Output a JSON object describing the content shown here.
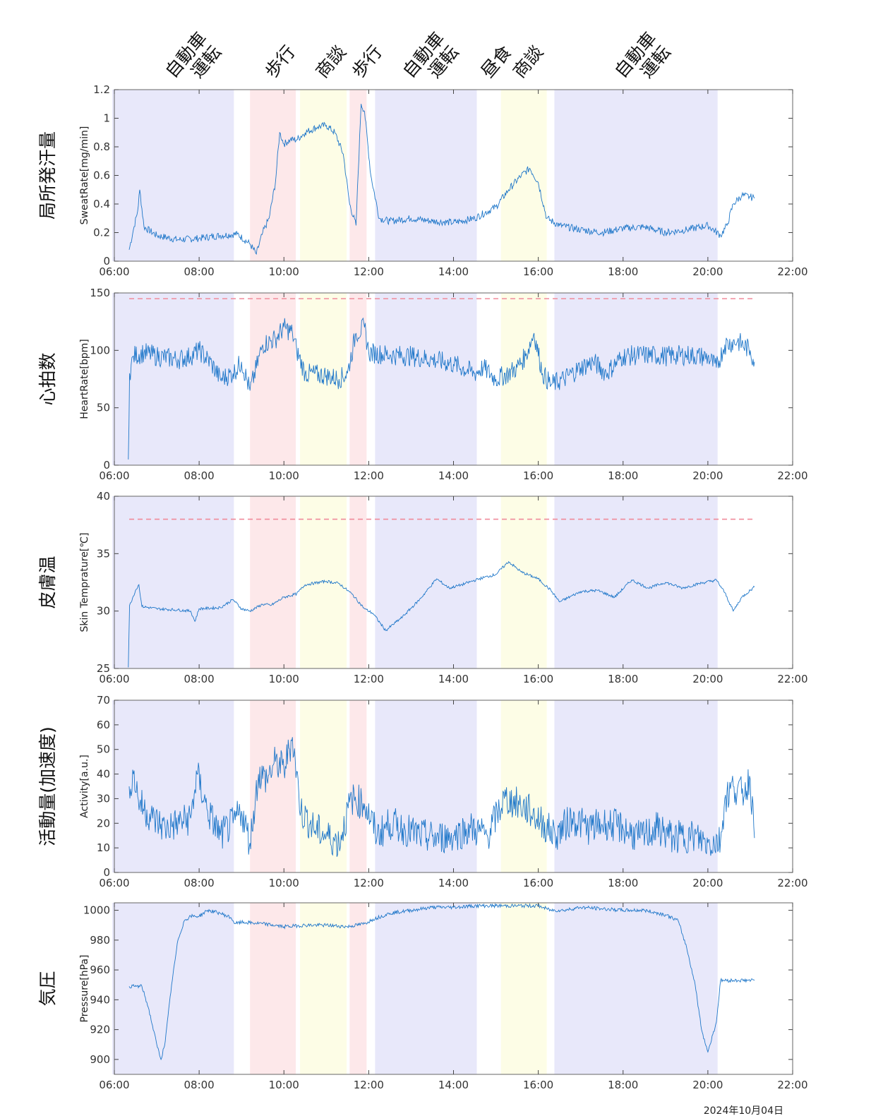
{
  "date_label": "2024年10月04日",
  "activity_labels": [
    {
      "lines": [
        "自動車",
        "運転"
      ],
      "t": 7.4
    },
    {
      "lines": [
        "歩行"
      ],
      "t": 9.75
    },
    {
      "lines": [
        "商談"
      ],
      "t": 10.95
    },
    {
      "lines": [
        "歩行"
      ],
      "t": 11.8
    },
    {
      "lines": [
        "自動車",
        "運転"
      ],
      "t": 13.0
    },
    {
      "lines": [
        "昼食"
      ],
      "t": 14.85
    },
    {
      "lines": [
        "商談"
      ],
      "t": 15.6
    },
    {
      "lines": [
        "自動車",
        "運転"
      ],
      "t": 18.0
    }
  ],
  "bands": [
    {
      "activity": "自動車運転",
      "start": 5.95,
      "end": 8.82,
      "color": "#e8e8fa"
    },
    {
      "activity": "歩行",
      "start": 9.2,
      "end": 10.28,
      "color": "#fde8ea"
    },
    {
      "activity": "商談",
      "start": 10.38,
      "end": 11.48,
      "color": "#fdfde6"
    },
    {
      "activity": "歩行",
      "start": 11.55,
      "end": 11.95,
      "color": "#fde8ea"
    },
    {
      "activity": "自動車運転",
      "start": 12.15,
      "end": 14.55,
      "color": "#e8e8fa"
    },
    {
      "activity": "商談",
      "start": 15.12,
      "end": 16.2,
      "color": "#fdfde6"
    },
    {
      "activity": "自動車運転",
      "start": 16.38,
      "end": 20.23,
      "color": "#e8e8fa"
    }
  ],
  "colors": {
    "line": "#1f77c9",
    "threshold": "#f08a9a",
    "frame": "#666666"
  },
  "chart_data": [
    {
      "type": "line",
      "jp_title": "局所発汗量",
      "ylabel": "SweatRate[mg/min]",
      "xlim": [
        6,
        22
      ],
      "ylim": [
        0,
        1.2
      ],
      "yticks": [
        "0",
        "0.2",
        "0.4",
        "0.6",
        "0.8",
        "1",
        "1.2"
      ],
      "xticks": [
        "06:00",
        "08:00",
        "10:00",
        "12:00",
        "14:00",
        "16:00",
        "18:00",
        "20:00",
        "22:00"
      ],
      "x": [
        6.35,
        6.45,
        6.55,
        6.6,
        6.7,
        7.0,
        7.5,
        8.0,
        8.5,
        8.9,
        9.2,
        9.35,
        9.5,
        9.65,
        9.8,
        9.9,
        10.0,
        10.15,
        10.3,
        10.5,
        10.8,
        11.0,
        11.2,
        11.4,
        11.55,
        11.7,
        11.82,
        11.9,
        12.05,
        12.25,
        12.5,
        13.0,
        13.5,
        14.0,
        14.5,
        15.0,
        15.3,
        15.6,
        15.8,
        16.0,
        16.2,
        16.5,
        17.0,
        17.5,
        18.0,
        18.5,
        19.0,
        19.5,
        20.0,
        20.3,
        20.45,
        20.6,
        20.8,
        21.0,
        21.1
      ],
      "y": [
        0.08,
        0.22,
        0.35,
        0.5,
        0.24,
        0.18,
        0.15,
        0.16,
        0.18,
        0.19,
        0.12,
        0.05,
        0.2,
        0.3,
        0.55,
        0.9,
        0.82,
        0.85,
        0.85,
        0.9,
        0.94,
        0.95,
        0.9,
        0.75,
        0.4,
        0.25,
        1.1,
        1.05,
        0.6,
        0.3,
        0.28,
        0.3,
        0.28,
        0.27,
        0.3,
        0.38,
        0.5,
        0.6,
        0.65,
        0.55,
        0.3,
        0.25,
        0.22,
        0.2,
        0.23,
        0.24,
        0.2,
        0.22,
        0.25,
        0.18,
        0.25,
        0.4,
        0.46,
        0.45,
        0.44
      ],
      "threshold": null
    },
    {
      "type": "line",
      "jp_title": "心拍数",
      "ylabel": "HeartRate[bpm]",
      "xlim": [
        6,
        22
      ],
      "ylim": [
        0,
        150
      ],
      "yticks": [
        "0",
        "50",
        "100",
        "150"
      ],
      "xticks": [
        "06:00",
        "08:00",
        "10:00",
        "12:00",
        "14:00",
        "16:00",
        "18:00",
        "20:00",
        "22:00"
      ],
      "x": [
        6.33,
        6.36,
        6.45,
        6.7,
        7.0,
        7.5,
        7.8,
        8.0,
        8.3,
        8.5,
        8.8,
        9.0,
        9.2,
        9.5,
        9.8,
        10.0,
        10.2,
        10.3,
        10.5,
        11.0,
        11.3,
        11.5,
        11.7,
        11.9,
        12.0,
        12.5,
        13.0,
        13.5,
        14.0,
        14.5,
        14.7,
        15.0,
        15.3,
        15.5,
        15.7,
        15.9,
        16.1,
        16.3,
        16.6,
        17.0,
        17.3,
        17.6,
        18.0,
        18.5,
        19.0,
        19.5,
        20.0,
        20.2,
        20.4,
        20.7,
        21.0,
        21.1
      ],
      "y": [
        5,
        80,
        95,
        98,
        95,
        92,
        95,
        100,
        88,
        75,
        80,
        90,
        65,
        105,
        110,
        120,
        115,
        100,
        80,
        78,
        75,
        80,
        115,
        120,
        98,
        96,
        95,
        92,
        88,
        80,
        85,
        75,
        80,
        85,
        95,
        115,
        80,
        70,
        75,
        85,
        90,
        80,
        95,
        96,
        95,
        96,
        94,
        85,
        105,
        108,
        100,
        90
      ],
      "threshold": 145
    },
    {
      "type": "line",
      "jp_title": "皮膚温",
      "ylabel": "Skin Temprature[℃]",
      "xlim": [
        6,
        22
      ],
      "ylim": [
        25,
        40
      ],
      "yticks": [
        "25",
        "30",
        "35",
        "40"
      ],
      "xticks": [
        "06:00",
        "08:00",
        "10:00",
        "12:00",
        "14:00",
        "16:00",
        "18:00",
        "20:00",
        "22:00"
      ],
      "x": [
        6.33,
        6.36,
        6.5,
        6.58,
        6.65,
        7.0,
        7.5,
        7.8,
        7.9,
        8.0,
        8.5,
        8.8,
        9.0,
        9.2,
        9.5,
        9.7,
        10.0,
        10.3,
        10.5,
        11.0,
        11.3,
        11.6,
        11.9,
        12.1,
        12.4,
        12.8,
        13.2,
        13.6,
        13.9,
        14.2,
        14.6,
        15.0,
        15.3,
        15.6,
        16.0,
        16.3,
        16.5,
        17.0,
        17.4,
        17.8,
        18.2,
        18.6,
        19.0,
        19.4,
        19.8,
        20.2,
        20.4,
        20.6,
        20.8,
        21.1
      ],
      "y": [
        25.1,
        30.5,
        31.8,
        32.3,
        30.4,
        30.2,
        30.1,
        30.0,
        29.1,
        30.2,
        30.3,
        31.0,
        30.2,
        30.0,
        30.6,
        30.5,
        31.2,
        31.5,
        32.3,
        32.6,
        32.4,
        31.5,
        30.2,
        29.8,
        28.3,
        29.5,
        31.0,
        32.8,
        32.0,
        32.3,
        32.8,
        33.2,
        34.3,
        33.4,
        32.8,
        31.8,
        30.8,
        31.7,
        31.8,
        31.2,
        32.7,
        32.0,
        32.5,
        32.0,
        32.4,
        32.7,
        31.6,
        30.0,
        31.2,
        32.1
      ],
      "threshold": 38
    },
    {
      "type": "line",
      "jp_title": "活動量(加速度)",
      "ylabel": "Activity[a.u.]",
      "xlim": [
        6,
        22
      ],
      "ylim": [
        0,
        70
      ],
      "yticks": [
        "0",
        "10",
        "20",
        "30",
        "40",
        "50",
        "60",
        "70"
      ],
      "xticks": [
        "06:00",
        "08:00",
        "10:00",
        "12:00",
        "14:00",
        "16:00",
        "18:00",
        "20:00",
        "22:00"
      ],
      "x": [
        6.35,
        6.45,
        6.6,
        6.9,
        7.2,
        7.5,
        7.8,
        7.95,
        8.2,
        8.5,
        8.8,
        9.0,
        9.2,
        9.4,
        9.6,
        9.8,
        10.0,
        10.2,
        10.4,
        10.7,
        11.0,
        11.3,
        11.6,
        11.9,
        12.2,
        12.5,
        12.8,
        13.2,
        13.6,
        14.0,
        14.4,
        14.8,
        15.2,
        15.5,
        15.8,
        16.1,
        16.4,
        16.8,
        17.2,
        17.6,
        18.0,
        18.4,
        18.8,
        19.2,
        19.6,
        20.0,
        20.3,
        20.4,
        20.6,
        20.8,
        21.0,
        21.1
      ],
      "y": [
        35,
        40,
        28,
        22,
        18,
        20,
        22,
        40,
        25,
        15,
        20,
        25,
        12,
        40,
        38,
        45,
        42,
        55,
        25,
        18,
        15,
        12,
        30,
        28,
        15,
        20,
        18,
        15,
        14,
        15,
        18,
        15,
        30,
        28,
        25,
        20,
        15,
        22,
        18,
        20,
        18,
        14,
        18,
        14,
        15,
        12,
        13,
        30,
        35,
        32,
        38,
        14
      ],
      "threshold": null
    },
    {
      "type": "line",
      "jp_title": "気圧",
      "ylabel": "Pressure[hPa]",
      "xlim": [
        6,
        22
      ],
      "ylim": [
        890,
        1005
      ],
      "yticks": [
        "900",
        "920",
        "940",
        "960",
        "980",
        "1000"
      ],
      "xticks": [
        "06:00",
        "08:00",
        "10:00",
        "12:00",
        "14:00",
        "16:00",
        "18:00",
        "20:00",
        "22:00"
      ],
      "x": [
        6.35,
        6.65,
        6.8,
        7.0,
        7.1,
        7.2,
        7.35,
        7.5,
        7.65,
        7.8,
        8.0,
        8.2,
        8.5,
        8.75,
        8.85,
        9.0,
        9.5,
        10.0,
        10.5,
        11.0,
        11.5,
        11.9,
        12.1,
        12.5,
        13.0,
        13.5,
        14.0,
        14.5,
        15.0,
        15.5,
        16.0,
        16.3,
        16.6,
        17.0,
        17.5,
        18.0,
        18.5,
        19.0,
        19.3,
        19.5,
        19.7,
        19.85,
        20.0,
        20.2,
        20.3,
        20.6,
        21.1
      ],
      "y": [
        949,
        949,
        935,
        910,
        900,
        912,
        950,
        980,
        993,
        996,
        996,
        1000,
        998,
        995,
        991,
        992,
        991,
        989,
        990,
        990,
        989,
        991,
        994,
        998,
        1000,
        1002,
        1002,
        1003,
        1003,
        1003,
        1003,
        1000,
        1000,
        1002,
        1001,
        1000,
        1000,
        997,
        993,
        975,
        950,
        920,
        905,
        925,
        953,
        953,
        953
      ],
      "threshold": null
    }
  ]
}
